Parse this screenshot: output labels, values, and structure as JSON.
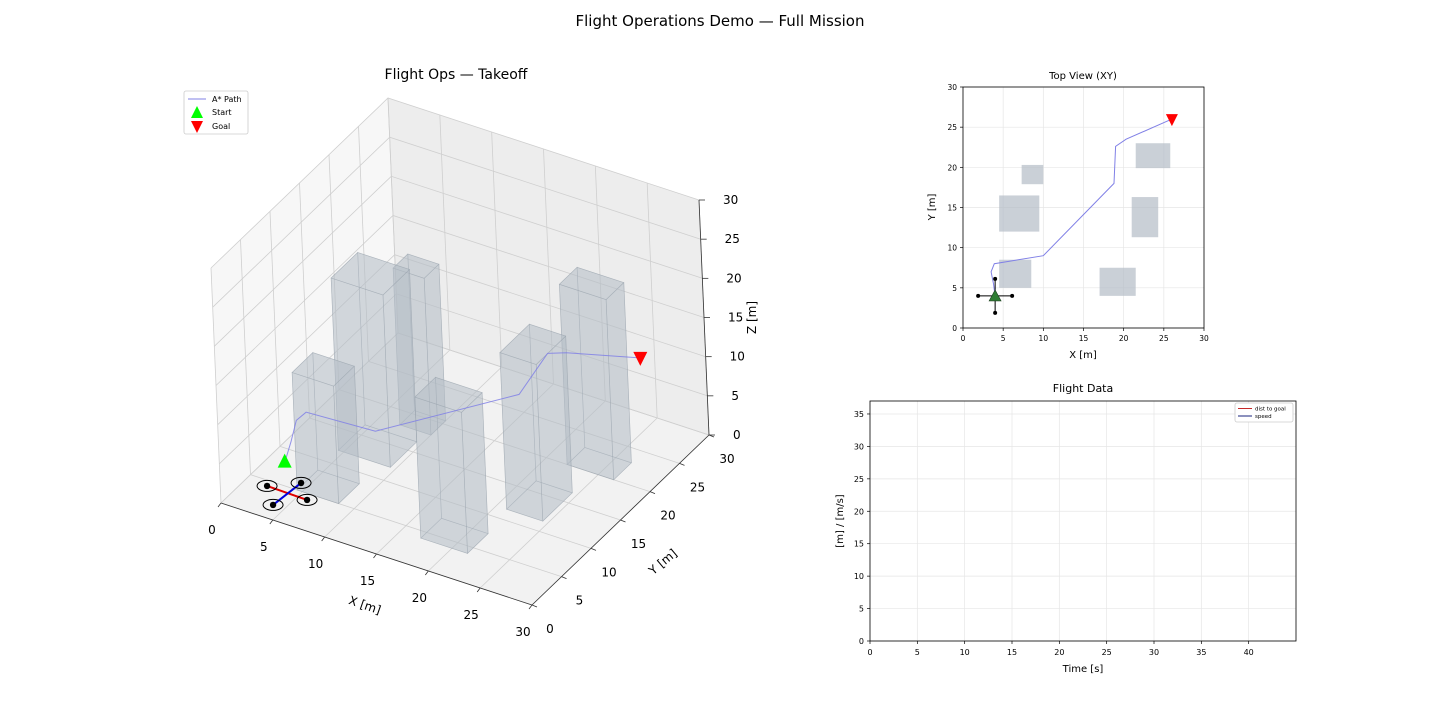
{
  "figure": {
    "suptitle": "Flight Operations Demo — Full Mission"
  },
  "colors": {
    "path": "#8080e6",
    "start": "#00ff00",
    "goal": "#ff0000",
    "obstacle": "#b3bcc6",
    "dist_to_goal": "#c62828",
    "speed": "#1a237e",
    "drone_arm_x": "#e00000",
    "drone_arm_y": "#0000e0",
    "drone_marker": "#2e7d32"
  },
  "chart_data": [
    {
      "id": "view3d",
      "type": "line",
      "title": "Flight Ops — Takeoff",
      "xlabel": "X [m]",
      "ylabel": "Y [m]",
      "zlabel": "Z [m]",
      "xlim": [
        0,
        30
      ],
      "ylim": [
        0,
        30
      ],
      "zlim": [
        0,
        30
      ],
      "x_ticks": [
        0,
        5,
        10,
        15,
        20,
        25,
        30
      ],
      "y_ticks": [
        0,
        5,
        10,
        15,
        20,
        25,
        30
      ],
      "z_ticks": [
        0,
        5,
        10,
        15,
        20,
        25,
        30
      ],
      "grid": true,
      "legend": {
        "placement": "upper-left",
        "entries": [
          "A* Path",
          "Start",
          "Goal"
        ]
      },
      "series": [
        {
          "name": "A* Path",
          "x": [
            4,
            3.8,
            3.5,
            3.9,
            10,
            18.8,
            19,
            20.3,
            26
          ],
          "y": [
            4,
            5.5,
            7,
            8,
            9,
            18,
            22.6,
            23.5,
            26
          ],
          "z": [
            4,
            5.5,
            7,
            7.5,
            7,
            9,
            11,
            11,
            11
          ]
        }
      ],
      "start": {
        "x": 4,
        "y": 4,
        "z": 4
      },
      "goal": {
        "x": 26,
        "y": 26,
        "z": 11
      },
      "obstacles": [
        {
          "x": [
            4.5,
            8.5
          ],
          "y": [
            5,
            8.5
          ],
          "z": [
            0,
            15
          ]
        },
        {
          "x": [
            4.5,
            9.5
          ],
          "y": [
            12,
            16.5
          ],
          "z": [
            0,
            22
          ]
        },
        {
          "x": [
            7,
            10
          ],
          "y": [
            18,
            20.5
          ],
          "z": [
            0,
            20
          ]
        },
        {
          "x": [
            17,
            21.5
          ],
          "y": [
            4,
            7.5
          ],
          "z": [
            0,
            18
          ]
        },
        {
          "x": [
            21,
            24.5
          ],
          "y": [
            11.5,
            16.5
          ],
          "z": [
            0,
            20
          ]
        },
        {
          "x": [
            22,
            26.5
          ],
          "y": [
            20,
            23
          ],
          "z": [
            0,
            23
          ]
        }
      ],
      "drone": {
        "x": 4,
        "y": 4,
        "z": 0
      }
    },
    {
      "id": "topview",
      "type": "line",
      "title": "Top View (XY)",
      "xlabel": "X [m]",
      "ylabel": "Y [m]",
      "xlim": [
        0,
        30
      ],
      "ylim": [
        0,
        30
      ],
      "x_ticks": [
        0,
        5,
        10,
        15,
        20,
        25,
        30
      ],
      "y_ticks": [
        0,
        5,
        10,
        15,
        20,
        25,
        30
      ],
      "grid": true,
      "series": [
        {
          "name": "A* Path",
          "x": [
            4,
            3.8,
            3.5,
            3.9,
            10,
            18.8,
            19,
            20.3,
            26
          ],
          "y": [
            4,
            5.5,
            7,
            8,
            9,
            18,
            22.6,
            23.5,
            26
          ]
        }
      ],
      "goal": {
        "x": 26,
        "y": 26
      },
      "drone": {
        "x": 4,
        "y": 4
      },
      "obstacles": [
        {
          "x": [
            4.5,
            8.5
          ],
          "y": [
            5,
            8.5
          ]
        },
        {
          "x": [
            4.5,
            9.5
          ],
          "y": [
            12,
            16.5
          ]
        },
        {
          "x": [
            7.3,
            10
          ],
          "y": [
            17.9,
            20.3
          ]
        },
        {
          "x": [
            17,
            21.5
          ],
          "y": [
            4,
            7.5
          ]
        },
        {
          "x": [
            21,
            24.3
          ],
          "y": [
            11.3,
            16.3
          ]
        },
        {
          "x": [
            21.5,
            25.8
          ],
          "y": [
            19.9,
            23
          ]
        }
      ]
    },
    {
      "id": "flightdata",
      "type": "line",
      "title": "Flight Data",
      "xlabel": "Time [s]",
      "ylabel": "[m] / [m/s]",
      "xlim": [
        0,
        45
      ],
      "ylim": [
        0,
        37
      ],
      "x_ticks": [
        0,
        5,
        10,
        15,
        20,
        25,
        30,
        35,
        40
      ],
      "y_ticks": [
        0,
        5,
        10,
        15,
        20,
        25,
        30,
        35
      ],
      "grid": true,
      "legend": {
        "placement": "upper-right"
      },
      "series": [
        {
          "name": "dist to goal",
          "x": [],
          "y": []
        },
        {
          "name": "speed",
          "x": [],
          "y": []
        }
      ]
    }
  ]
}
